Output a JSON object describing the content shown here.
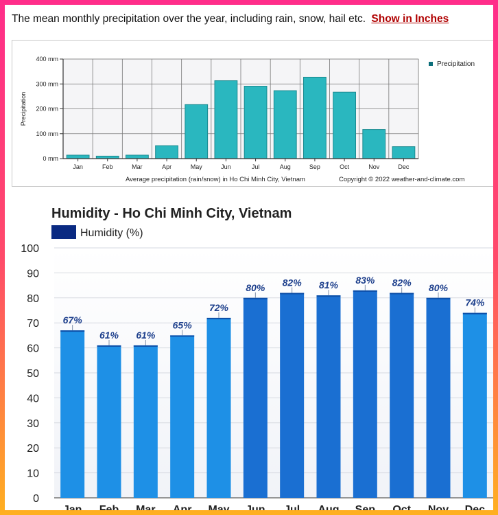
{
  "intro": {
    "text": "The mean monthly precipitation over the year, including rain, snow, hail etc.",
    "link_label": "Show in Inches"
  },
  "precipitation": {
    "legend": "Precipitation",
    "ylabel": "Precipitation",
    "footer_caption": "Average precipitation (rain/snow) in Ho Chi Minh City, Vietnam",
    "footer_copyright": "Copyright © 2022  weather-and-climate.com",
    "colors": {
      "bar": "#2ab7bf",
      "bar_edge": "#1a8a90",
      "plot_bg": "#f5f5f7"
    }
  },
  "humidity": {
    "title": "Humidity - Ho Chi Minh City, Vietnam",
    "legend": "Humidity (%)",
    "colors": {
      "bar_light": "#1e90e6",
      "bar_dark": "#1a6fd2",
      "legend": "#0a2a82",
      "label": "#1d3f8c"
    }
  },
  "chart_data": [
    {
      "type": "bar",
      "title": "",
      "categories": [
        "Jan",
        "Feb",
        "Mar",
        "Apr",
        "May",
        "Jun",
        "Jul",
        "Aug",
        "Sep",
        "Oct",
        "Nov",
        "Dec"
      ],
      "series": [
        {
          "name": "Precipitation",
          "values": [
            14,
            10,
            14,
            52,
            217,
            313,
            291,
            273,
            327,
            267,
            117,
            48
          ]
        }
      ],
      "xlabel": "",
      "ylabel": "Precipitation",
      "ylim": [
        0,
        400
      ],
      "yticks": [
        0,
        100,
        200,
        300,
        400
      ],
      "ytick_labels": [
        "0 mm",
        "100 mm",
        "200 mm",
        "300 mm",
        "400 mm"
      ],
      "grid": true,
      "legend_position": "right"
    },
    {
      "type": "bar",
      "title": "Humidity - Ho Chi Minh City, Vietnam",
      "categories": [
        "Jan",
        "Feb",
        "Mar",
        "Apr",
        "May",
        "Jun",
        "Jul",
        "Aug",
        "Sep",
        "Oct",
        "Nov",
        "Dec"
      ],
      "series": [
        {
          "name": "Humidity (%)",
          "values": [
            67,
            61,
            61,
            65,
            72,
            80,
            82,
            81,
            83,
            82,
            80,
            74
          ]
        }
      ],
      "data_labels": [
        "67%",
        "61%",
        "61%",
        "65%",
        "72%",
        "80%",
        "82%",
        "81%",
        "83%",
        "82%",
        "80%",
        "74%"
      ],
      "xlabel": "",
      "ylabel": "",
      "ylim": [
        0,
        100
      ],
      "yticks": [
        0,
        10,
        20,
        30,
        40,
        50,
        60,
        70,
        80,
        90,
        100
      ],
      "grid": true,
      "legend_position": "top-left"
    }
  ]
}
